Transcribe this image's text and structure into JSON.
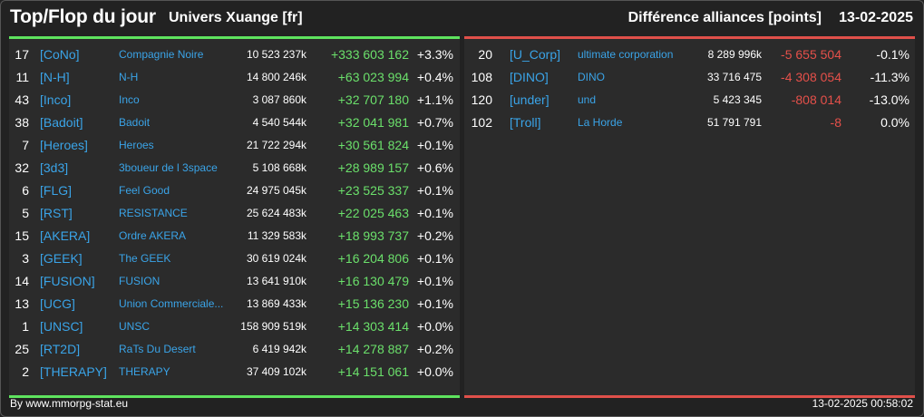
{
  "header": {
    "title": "Top/Flop du jour",
    "universe": "Univers Xuange [fr]",
    "diff_title": "Différence alliances [points]",
    "date": "13-02-2025"
  },
  "top": [
    {
      "rank": "17",
      "tag": "[CoNo]",
      "name": "Compagnie Noire",
      "points": "10 523 237k",
      "diff": "+333 603 162",
      "pct": "+3.3%"
    },
    {
      "rank": "11",
      "tag": "[N-H]",
      "name": "N-H",
      "points": "14 800 246k",
      "diff": "+63 023 994",
      "pct": "+0.4%"
    },
    {
      "rank": "43",
      "tag": "[Inco]",
      "name": "Inco",
      "points": "3 087 860k",
      "diff": "+32 707 180",
      "pct": "+1.1%"
    },
    {
      "rank": "38",
      "tag": "[Badoit]",
      "name": "Badoit",
      "points": "4 540 544k",
      "diff": "+32 041 981",
      "pct": "+0.7%"
    },
    {
      "rank": "7",
      "tag": "[Heroes]",
      "name": "Heroes",
      "points": "21 722 294k",
      "diff": "+30 561 824",
      "pct": "+0.1%"
    },
    {
      "rank": "32",
      "tag": "[3d3]",
      "name": "3boueur de l 3space",
      "points": "5 108 668k",
      "diff": "+28 989 157",
      "pct": "+0.6%"
    },
    {
      "rank": "6",
      "tag": "[FLG]",
      "name": "Feel Good",
      "points": "24 975 045k",
      "diff": "+23 525 337",
      "pct": "+0.1%"
    },
    {
      "rank": "5",
      "tag": "[RST]",
      "name": "RESISTANCE",
      "points": "25 624 483k",
      "diff": "+22 025 463",
      "pct": "+0.1%"
    },
    {
      "rank": "15",
      "tag": "[AKERA]",
      "name": "Ordre AKERA",
      "points": "11 329 583k",
      "diff": "+18 993 737",
      "pct": "+0.2%"
    },
    {
      "rank": "3",
      "tag": "[GEEK]",
      "name": "The GEEK",
      "points": "30 619 024k",
      "diff": "+16 204 806",
      "pct": "+0.1%"
    },
    {
      "rank": "14",
      "tag": "[FUSION]",
      "name": "FUSION",
      "points": "13 641 910k",
      "diff": "+16 130 479",
      "pct": "+0.1%"
    },
    {
      "rank": "13",
      "tag": "[UCG]",
      "name": "Union Commerciale...",
      "points": "13 869 433k",
      "diff": "+15 136 230",
      "pct": "+0.1%"
    },
    {
      "rank": "1",
      "tag": "[UNSC]",
      "name": "UNSC",
      "points": "158 909 519k",
      "diff": "+14 303 414",
      "pct": "+0.0%"
    },
    {
      "rank": "25",
      "tag": "[RT2D]",
      "name": "RaTs Du Desert",
      "points": "6 419 942k",
      "diff": "+14 278 887",
      "pct": "+0.2%"
    },
    {
      "rank": "2",
      "tag": "[THERAPY]",
      "name": "THERAPY",
      "points": "37 409 102k",
      "diff": "+14 151 061",
      "pct": "+0.0%"
    }
  ],
  "flop": [
    {
      "rank": "20",
      "tag": "[U_Corp]",
      "name": "ultimate corporation",
      "points": "8 289 996k",
      "diff": "-5 655 504",
      "pct": "-0.1%"
    },
    {
      "rank": "108",
      "tag": "[DINO]",
      "name": "DINO",
      "points": "33 716 475",
      "diff": "-4 308 054",
      "pct": "-11.3%"
    },
    {
      "rank": "120",
      "tag": "[under]",
      "name": "und",
      "points": "5 423 345",
      "diff": "-808 014",
      "pct": "-13.0%"
    },
    {
      "rank": "102",
      "tag": "[Troll]",
      "name": "La Horde",
      "points": "51 791 791",
      "diff": "-8",
      "pct": "0.0%"
    }
  ],
  "footer": {
    "credit": "By www.mmorpg-stat.eu",
    "timestamp": "13-02-2025 00:58:02"
  },
  "colors": {
    "background": "#222222",
    "panel": "#2b2b2b",
    "positive": "#6be06b",
    "negative": "#e5504a",
    "link": "#3aa4e8"
  }
}
